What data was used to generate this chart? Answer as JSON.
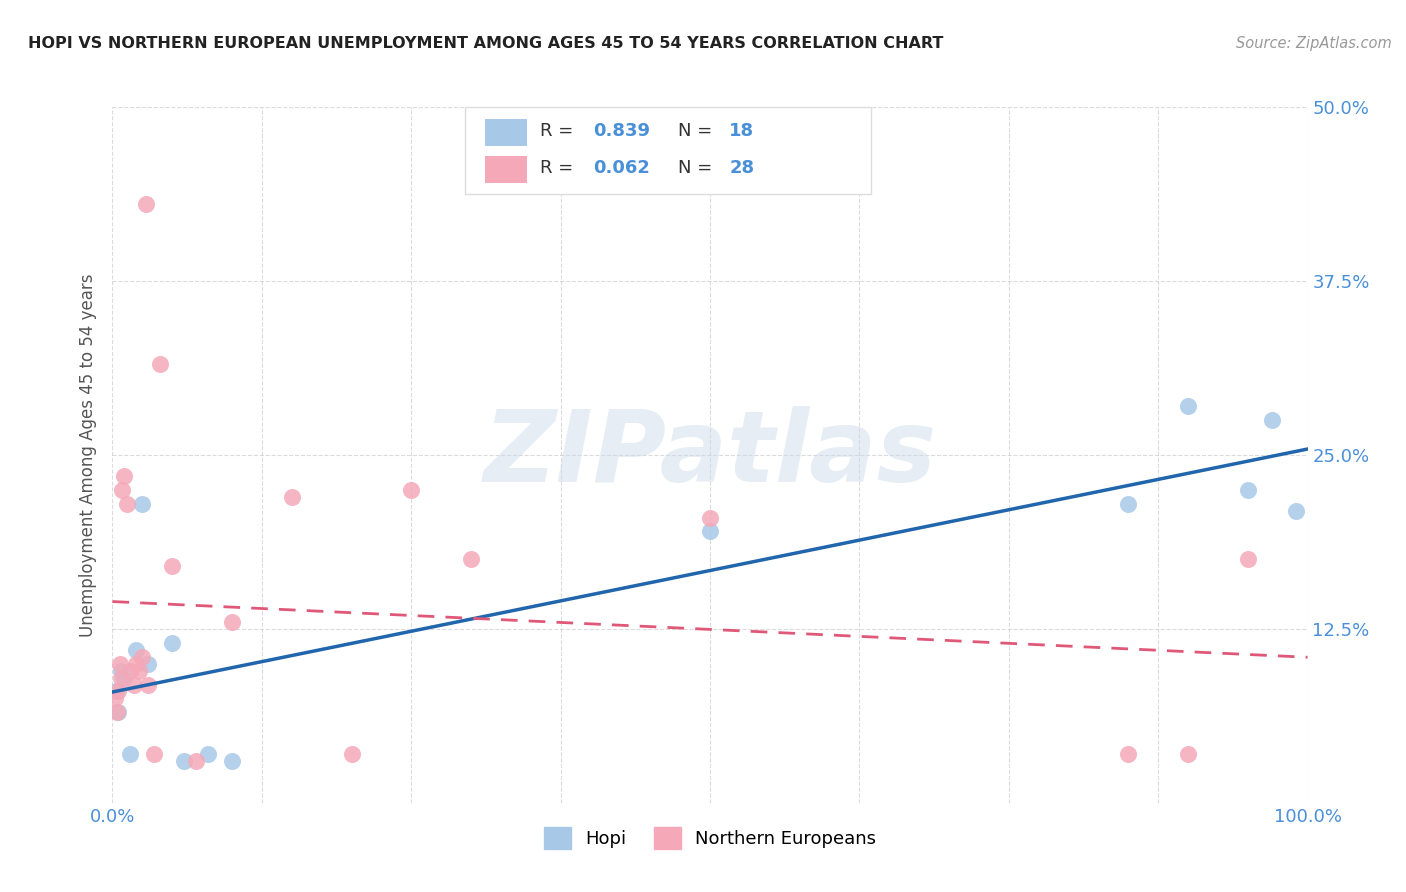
{
  "title": "HOPI VS NORTHERN EUROPEAN UNEMPLOYMENT AMONG AGES 45 TO 54 YEARS CORRELATION CHART",
  "source": "Source: ZipAtlas.com",
  "ylabel": "Unemployment Among Ages 45 to 54 years",
  "xlim": [
    0,
    100
  ],
  "ylim": [
    0,
    50
  ],
  "background_color": "#ffffff",
  "watermark_text": "ZIPatlas",
  "hopi_color": "#a8c8e8",
  "northern_color": "#f4a8b8",
  "hopi_line_color": "#2166ac",
  "northern_line_color": "#e05878",
  "legend_R_hopi": "0.839",
  "legend_N_hopi": "18",
  "legend_R_northern": "0.062",
  "legend_N_northern": "28",
  "tick_color": "#4a90d9",
  "hopi_scatter_x": [
    0.3,
    0.5,
    0.7,
    1.0,
    1.5,
    2.0,
    2.5,
    3.0,
    5.0,
    6.0,
    8.0,
    10.0,
    50.0,
    85.0,
    90.0,
    95.0,
    97.0,
    99.0
  ],
  "hopi_scatter_y": [
    8.0,
    6.5,
    9.5,
    9.0,
    3.5,
    11.0,
    21.5,
    10.0,
    11.5,
    3.0,
    3.5,
    3.0,
    19.5,
    21.5,
    28.5,
    22.5,
    27.5,
    21.0
  ],
  "northern_scatter_x": [
    0.2,
    0.4,
    0.5,
    0.6,
    0.7,
    0.8,
    1.0,
    1.2,
    1.5,
    1.8,
    2.0,
    2.2,
    2.5,
    3.0,
    3.5,
    5.0,
    7.0,
    10.0,
    15.0,
    20.0,
    25.0,
    30.0,
    50.0,
    85.0,
    90.0,
    95.0,
    2.8,
    4.0
  ],
  "northern_scatter_y": [
    7.5,
    6.5,
    8.0,
    10.0,
    9.0,
    22.5,
    23.5,
    21.5,
    9.5,
    8.5,
    10.0,
    9.5,
    10.5,
    8.5,
    3.5,
    17.0,
    3.0,
    13.0,
    22.0,
    3.5,
    22.5,
    17.5,
    20.5,
    3.5,
    3.5,
    17.5,
    43.0,
    31.5
  ]
}
